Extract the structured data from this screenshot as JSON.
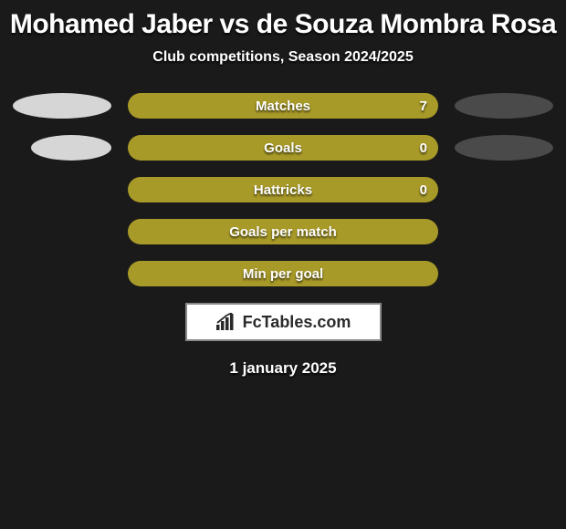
{
  "header": {
    "title": "Mohamed Jaber vs de Souza Mombra Rosa",
    "subtitle": "Club competitions, Season 2024/2025"
  },
  "colors": {
    "background": "#1a1a1a",
    "bar_fill": "#a89a28",
    "ellipse_left": "#d6d6d6",
    "ellipse_right": "#4a4a4a",
    "text": "#ffffff"
  },
  "stats": [
    {
      "label": "Matches",
      "value": "7",
      "bar_left_pct": 0,
      "bar_width_pct": 100,
      "show_left_ellipse": true,
      "show_right_ellipse": true,
      "show_value": true
    },
    {
      "label": "Goals",
      "value": "0",
      "bar_left_pct": 0,
      "bar_width_pct": 100,
      "show_left_ellipse": true,
      "show_right_ellipse": true,
      "show_value": true,
      "left_ellipse_offset": true
    },
    {
      "label": "Hattricks",
      "value": "0",
      "bar_left_pct": 0,
      "bar_width_pct": 100,
      "show_left_ellipse": false,
      "show_right_ellipse": false,
      "show_value": true
    },
    {
      "label": "Goals per match",
      "value": "",
      "bar_left_pct": 0,
      "bar_width_pct": 100,
      "show_left_ellipse": false,
      "show_right_ellipse": false,
      "show_value": false
    },
    {
      "label": "Min per goal",
      "value": "",
      "bar_left_pct": 0,
      "bar_width_pct": 100,
      "show_left_ellipse": false,
      "show_right_ellipse": false,
      "show_value": false
    }
  ],
  "logo": {
    "text": "FcTables.com"
  },
  "footer": {
    "date": "1 january 2025"
  }
}
